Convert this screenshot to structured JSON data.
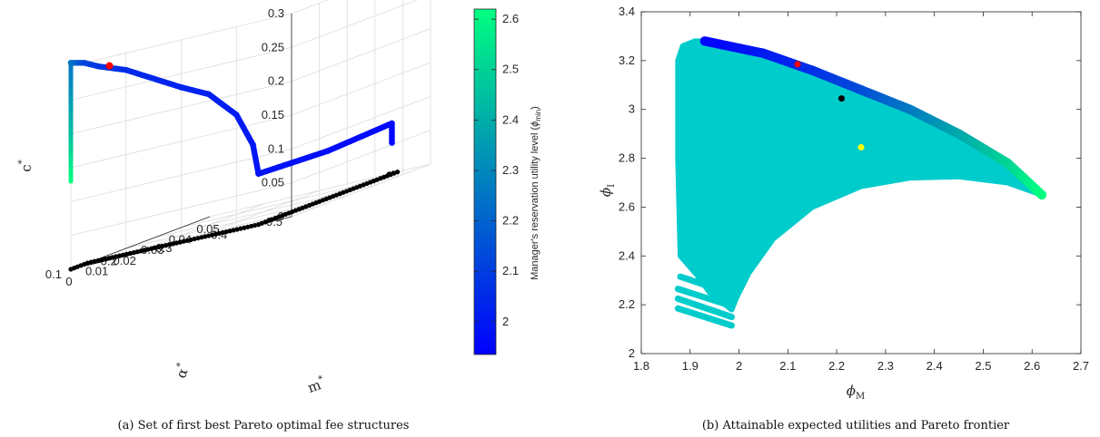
{
  "chart_data": [
    {
      "type": "scatter",
      "subtype": "3d",
      "caption": "(a) Set of first best Pareto optimal fee structures",
      "axes": {
        "m": {
          "label": "m",
          "label_superscript": "*",
          "ticks": [
            "0",
            "0.01",
            "0.02",
            "0.03",
            "0.04",
            "0.05"
          ],
          "lim": [
            0,
            0.05
          ]
        },
        "alpha": {
          "label": "α",
          "label_superscript": "*",
          "ticks": [
            "0.1",
            "0.2",
            "0.3",
            "0.4",
            "0.5"
          ],
          "lim": [
            0.1,
            0.5
          ]
        },
        "c": {
          "label": "c",
          "label_superscript": "*",
          "ticks": [
            "0",
            "0.05",
            "0.1",
            "0.15",
            "0.2",
            "0.25",
            "0.3"
          ],
          "lim": [
            0,
            0.3
          ]
        }
      },
      "grid": true,
      "colorbar": {
        "label": "Manager's reservation utility level (",
        "label_symbol": "ϕ",
        "label_subscript": "min",
        "label_close": ")",
        "ticks": [
          "2",
          "2.1",
          "2.2",
          "2.3",
          "2.4",
          "2.5",
          "2.6"
        ],
        "range": [
          1.935,
          2.62
        ],
        "colors": [
          "#0000ff",
          "#00ff80"
        ]
      },
      "series": [
        {
          "role": "curve",
          "points": [
            {
              "m": 0.0,
              "alpha": 0.1,
              "c": 0.13,
              "u": 2.62
            },
            {
              "m": 0.0,
              "alpha": 0.1,
              "c": 0.2,
              "u": 2.45
            },
            {
              "m": 0.0,
              "alpha": 0.1,
              "c": 0.305,
              "u": 2.25
            },
            {
              "m": 0.0,
              "alpha": 0.125,
              "c": 0.3,
              "u": 2.12
            },
            {
              "m": 0.0,
              "alpha": 0.15,
              "c": 0.29,
              "u": 2.08
            },
            {
              "m": 0.0,
              "alpha": 0.2,
              "c": 0.275,
              "u": 2.05
            },
            {
              "m": 0.0,
              "alpha": 0.3,
              "c": 0.23,
              "u": 2.03
            },
            {
              "m": 0.0,
              "alpha": 0.35,
              "c": 0.21,
              "u": 2.02
            },
            {
              "m": 0.0,
              "alpha": 0.4,
              "c": 0.17,
              "u": 2.01
            },
            {
              "m": 0.0,
              "alpha": 0.43,
              "c": 0.12,
              "u": 2.0
            },
            {
              "m": 0.0,
              "alpha": 0.44,
              "c": 0.075,
              "u": 1.99
            },
            {
              "m": 0.025,
              "alpha": 0.44,
              "c": 0.07,
              "u": 1.97
            },
            {
              "m": 0.048,
              "alpha": 0.44,
              "c": 0.075,
              "u": 1.96
            },
            {
              "m": 0.05,
              "alpha": 0.43,
              "c": 0.045,
              "u": 1.95
            }
          ]
        },
        {
          "role": "projection",
          "points": [
            {
              "m": 0.0,
              "alpha": 0.1
            },
            {
              "m": 0.006,
              "alpha": 0.1
            },
            {
              "m": 0.0,
              "alpha": 0.44
            },
            {
              "m": 0.05,
              "alpha": 0.44
            },
            {
              "m": 0.05,
              "alpha": 0.425
            }
          ]
        },
        {
          "role": "marker",
          "color": "#ff0000",
          "points": [
            {
              "m": 0.0,
              "alpha": 0.17,
              "c": 0.287
            }
          ]
        }
      ]
    },
    {
      "type": "scatter",
      "caption": "(b) Attainable expected utilities and Pareto frontier",
      "xlabel": "ϕ",
      "xlabel_subscript": "M",
      "ylabel": "ϕ",
      "ylabel_subscript": "I",
      "xlim": [
        1.8,
        2.7
      ],
      "ylim": [
        2,
        3.4
      ],
      "xticks": [
        "1.8",
        "1.9",
        "2",
        "2.1",
        "2.2",
        "2.3",
        "2.4",
        "2.5",
        "2.6",
        "2.7"
      ],
      "yticks": [
        "2",
        "2.2",
        "2.4",
        "2.6",
        "2.8",
        "3",
        "3.2",
        "3.4"
      ],
      "grid": false,
      "attainable_region": {
        "color": "#00cccc",
        "boundary": [
          [
            1.93,
            3.28
          ],
          [
            2.05,
            3.23
          ],
          [
            2.15,
            3.16
          ],
          [
            2.25,
            3.08
          ],
          [
            2.35,
            3.0
          ],
          [
            2.45,
            2.9
          ],
          [
            2.55,
            2.78
          ],
          [
            2.62,
            2.65
          ],
          [
            2.55,
            2.7
          ],
          [
            2.45,
            2.725
          ],
          [
            2.35,
            2.72
          ],
          [
            2.25,
            2.685
          ],
          [
            2.15,
            2.6
          ],
          [
            2.07,
            2.47
          ],
          [
            2.02,
            2.33
          ],
          [
            1.995,
            2.23
          ],
          [
            1.985,
            2.18
          ],
          [
            1.94,
            2.25
          ],
          [
            1.915,
            2.32
          ],
          [
            1.88,
            2.4
          ],
          [
            1.875,
            2.8
          ],
          [
            1.875,
            3.2
          ],
          [
            1.885,
            3.26
          ],
          [
            1.91,
            3.28
          ]
        ],
        "fragments": [
          [
            [
              1.88,
              2.315
            ],
            [
              1.985,
              2.245
            ]
          ],
          [
            [
              1.875,
              2.265
            ],
            [
              1.985,
              2.195
            ]
          ],
          [
            [
              1.875,
              2.225
            ],
            [
              1.985,
              2.15
            ]
          ],
          [
            [
              1.875,
              2.185
            ],
            [
              1.985,
              2.115
            ]
          ]
        ]
      },
      "pareto_frontier": {
        "colorbar_ref": 0,
        "points": [
          {
            "x": 1.93,
            "y": 3.28,
            "u": 1.94
          },
          {
            "x": 2.05,
            "y": 3.23,
            "u": 2.0
          },
          {
            "x": 2.15,
            "y": 3.16,
            "u": 2.06
          },
          {
            "x": 2.25,
            "y": 3.08,
            "u": 2.14
          },
          {
            "x": 2.35,
            "y": 3.0,
            "u": 2.26
          },
          {
            "x": 2.45,
            "y": 2.9,
            "u": 2.38
          },
          {
            "x": 2.55,
            "y": 2.78,
            "u": 2.5
          },
          {
            "x": 2.62,
            "y": 2.65,
            "u": 2.62
          }
        ]
      },
      "markers": [
        {
          "x": 2.12,
          "y": 3.185,
          "color": "#ff0000"
        },
        {
          "x": 2.21,
          "y": 3.045,
          "color": "#000000"
        },
        {
          "x": 2.25,
          "y": 2.845,
          "color": "#ffff00"
        }
      ]
    }
  ]
}
